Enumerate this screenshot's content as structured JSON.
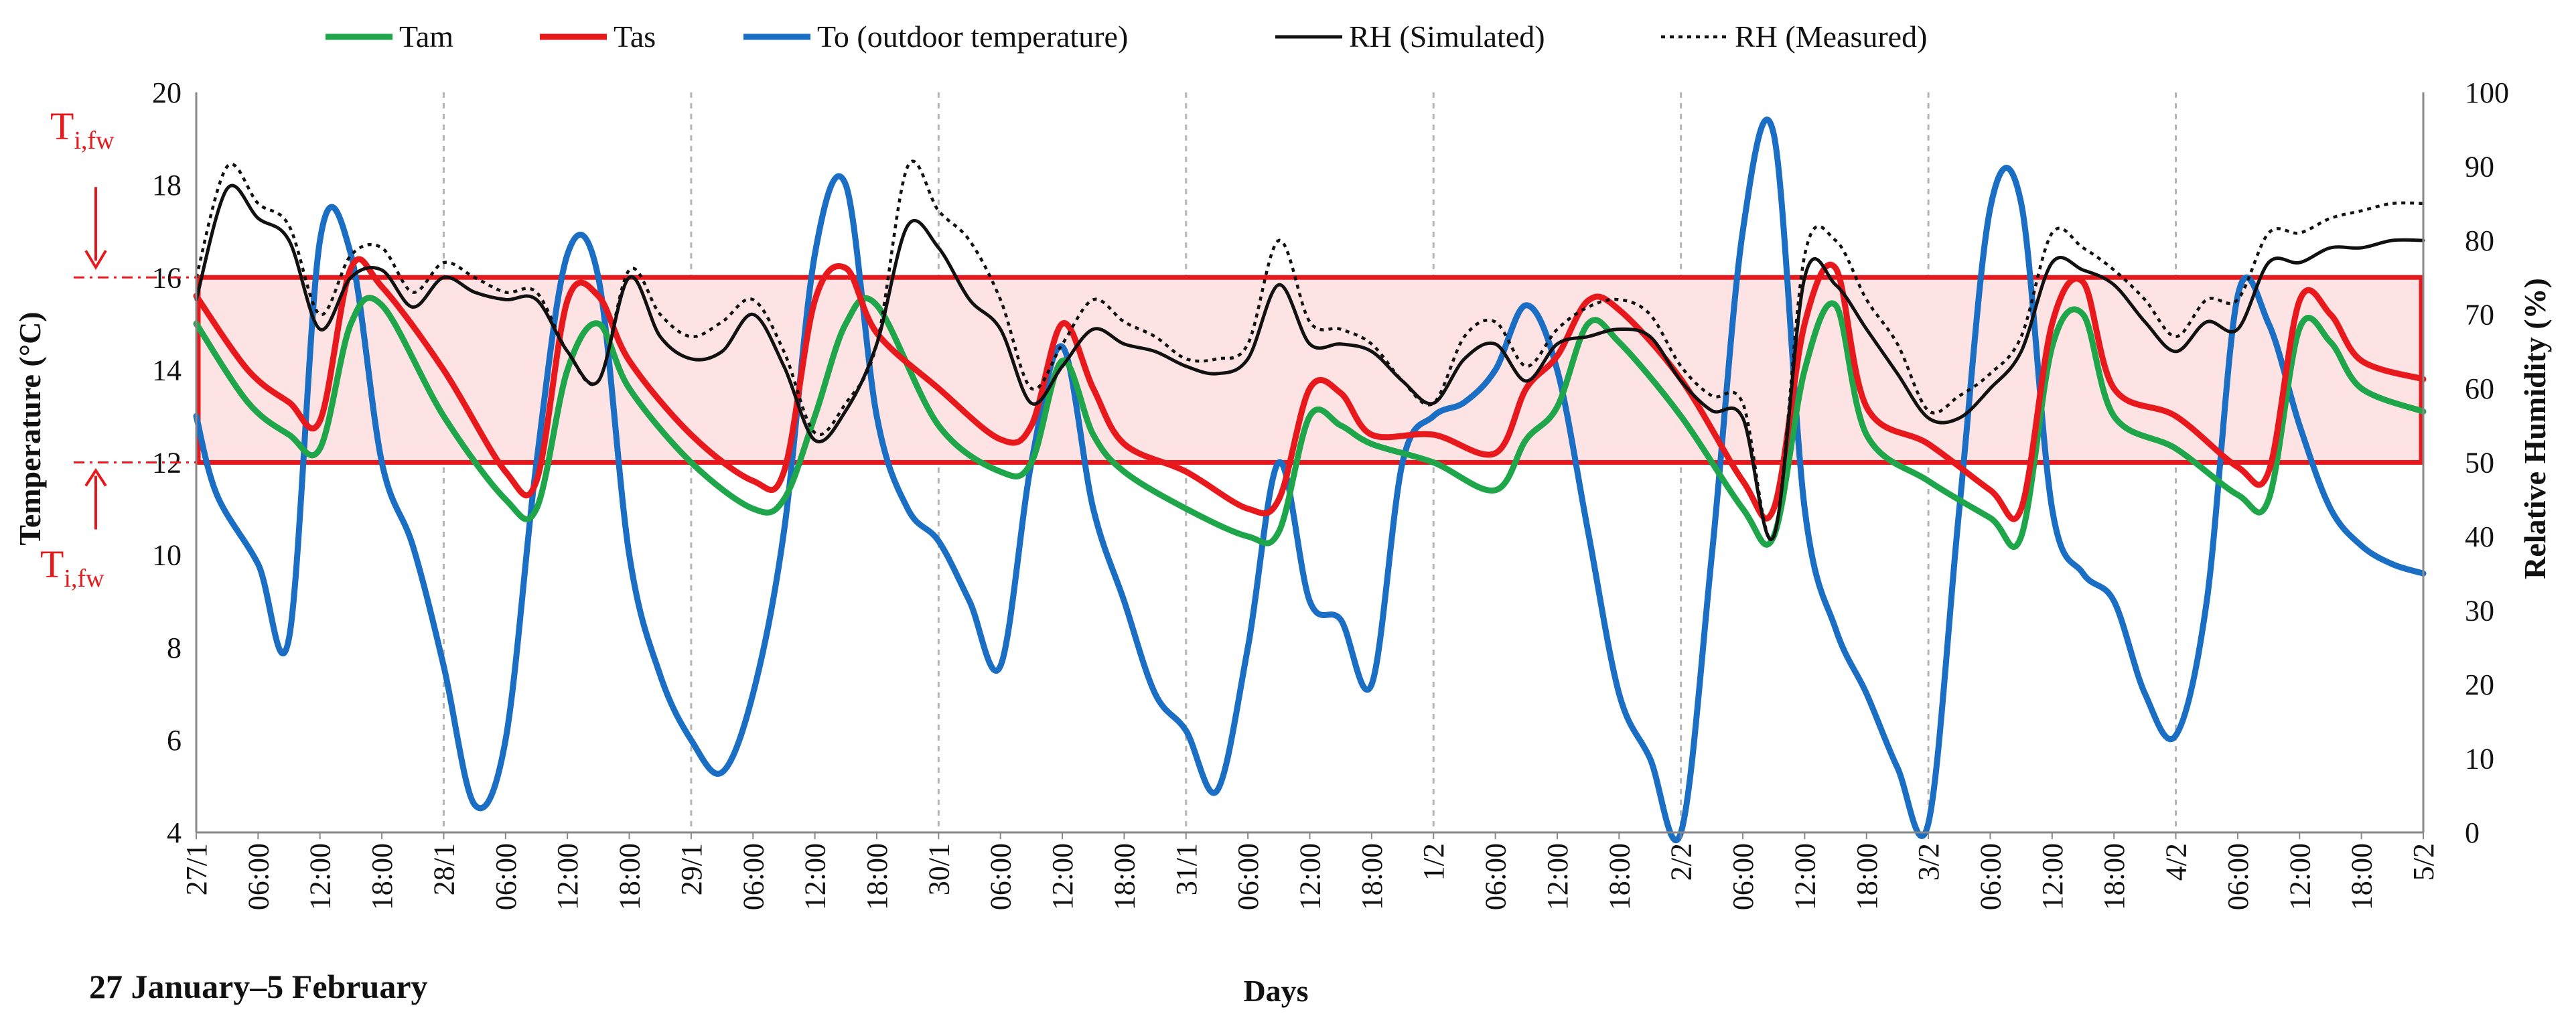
{
  "chart_data": {
    "type": "line",
    "title": "",
    "xlabel": "Days",
    "ylabel": "Temperature (°C)",
    "y2label": "Relative Humidity (%)",
    "footnote": "27 January–5 February",
    "ylim": [
      4,
      20
    ],
    "y2lim": [
      0,
      100
    ],
    "yticks": [
      4,
      6,
      8,
      10,
      12,
      14,
      16,
      18,
      20
    ],
    "y2ticks": [
      0,
      10,
      20,
      30,
      40,
      50,
      60,
      70,
      80,
      90,
      100
    ],
    "xlim": [
      0,
      216
    ],
    "x_unit": "hours since 27/1 00:00",
    "x_tick_labels": [
      "27/1",
      "06:00",
      "12:00",
      "18:00",
      "28/1",
      "06:00",
      "12:00",
      "18:00",
      "29/1",
      "06:00",
      "12:00",
      "18:00",
      "30/1",
      "06:00",
      "12:00",
      "18:00",
      "31/1",
      "06:00",
      "12:00",
      "18:00",
      "1/2",
      "06:00",
      "12:00",
      "18:00",
      "2/2",
      "06:00",
      "12:00",
      "18:00",
      "3/2",
      "06:00",
      "12:00",
      "18:00",
      "4/2",
      "06:00",
      "12:00",
      "18:00",
      "5/2"
    ],
    "grid": "vertical dotted lines at day boundaries",
    "legend": "top",
    "comfort_band": {
      "lower": 12,
      "upper": 16,
      "label_upper": "T",
      "label_upper_sub": "i,fw",
      "label_lower": "T",
      "label_lower_sub": "i,fw"
    },
    "series": [
      {
        "name": "Tam",
        "axis": "left",
        "color": "#1fa64a",
        "style": "solid",
        "x": [
          0,
          5,
          9,
          12,
          15,
          18,
          24,
          30,
          33,
          36,
          39,
          42,
          48,
          54,
          57,
          60,
          63,
          66,
          72,
          78,
          81,
          84,
          87,
          90,
          96,
          102,
          105,
          108,
          111,
          114,
          120,
          126,
          129,
          132,
          135,
          138,
          144,
          150,
          153,
          156,
          159,
          162,
          168,
          174,
          177,
          180,
          183,
          186,
          192,
          198,
          201,
          204,
          207,
          210,
          216
        ],
        "y": [
          15.0,
          13.3,
          12.6,
          12.3,
          15.0,
          15.4,
          13.0,
          11.2,
          11.0,
          14.0,
          15.0,
          13.6,
          12.0,
          11.0,
          11.2,
          13.0,
          15.0,
          15.4,
          12.8,
          11.8,
          12.0,
          14.2,
          12.6,
          11.8,
          11.0,
          10.4,
          10.5,
          13.0,
          12.8,
          12.4,
          12.0,
          11.4,
          12.5,
          13.2,
          15.0,
          14.6,
          13.0,
          11.0,
          10.4,
          14.0,
          15.4,
          12.6,
          11.6,
          10.8,
          10.4,
          14.5,
          15.2,
          13.0,
          12.3,
          11.3,
          11.2,
          14.9,
          14.6,
          13.6,
          13.1
        ]
      },
      {
        "name": "Tas",
        "axis": "left",
        "color": "#e8191c",
        "style": "solid",
        "x": [
          0,
          5,
          9,
          12,
          15,
          18,
          24,
          30,
          33,
          36,
          39,
          42,
          48,
          54,
          57,
          60,
          63,
          66,
          72,
          78,
          81,
          84,
          87,
          90,
          96,
          102,
          105,
          108,
          111,
          114,
          120,
          126,
          129,
          132,
          135,
          138,
          144,
          150,
          153,
          156,
          159,
          162,
          168,
          174,
          177,
          180,
          183,
          186,
          192,
          198,
          201,
          204,
          207,
          210,
          216
        ],
        "y": [
          15.6,
          14.0,
          13.3,
          12.9,
          16.2,
          15.8,
          14.0,
          11.8,
          11.6,
          15.5,
          15.6,
          14.2,
          12.6,
          11.6,
          11.8,
          15.5,
          16.2,
          14.8,
          13.6,
          12.5,
          12.8,
          15.0,
          13.6,
          12.4,
          11.8,
          11.0,
          11.2,
          13.6,
          13.5,
          12.6,
          12.6,
          12.2,
          13.6,
          14.3,
          15.5,
          15.3,
          13.8,
          11.6,
          11.0,
          15.0,
          16.2,
          13.2,
          12.4,
          11.4,
          11.0,
          15.0,
          15.9,
          13.6,
          13.0,
          11.9,
          11.8,
          15.5,
          15.2,
          14.2,
          13.8
        ]
      },
      {
        "name": "To (outdoor temperature)",
        "axis": "left",
        "color": "#1a6fc4",
        "style": "solid",
        "x": [
          0,
          2,
          6,
          9,
          12,
          15,
          18,
          21,
          24,
          27,
          30,
          33,
          36,
          39,
          42,
          45,
          48,
          51,
          54,
          57,
          60,
          63,
          66,
          69,
          72,
          75,
          78,
          81,
          84,
          87,
          90,
          93,
          96,
          99,
          102,
          105,
          108,
          111,
          114,
          117,
          120,
          123,
          126,
          129,
          132,
          135,
          138,
          141,
          144,
          147,
          150,
          153,
          156,
          159,
          162,
          165,
          168,
          171,
          174,
          177,
          180,
          183,
          186,
          189,
          192,
          195,
          198,
          201,
          204,
          207,
          210,
          213,
          216
        ],
        "y": [
          13.0,
          11.3,
          9.8,
          8.2,
          16.8,
          16.5,
          12.0,
          10.2,
          7.6,
          4.6,
          6.0,
          12.0,
          16.5,
          16.0,
          10.0,
          7.4,
          6.0,
          5.3,
          7.0,
          10.5,
          16.5,
          18.0,
          13.0,
          11.0,
          10.3,
          9.0,
          7.6,
          12.0,
          14.5,
          11.0,
          9.0,
          7.0,
          6.2,
          4.9,
          8.0,
          12.0,
          9.0,
          8.6,
          7.2,
          12.0,
          13.0,
          13.3,
          14.0,
          15.4,
          14.0,
          10.5,
          7.0,
          5.6,
          4.0,
          10.0,
          17.0,
          19.1,
          11.0,
          8.4,
          7.0,
          5.4,
          4.2,
          11.0,
          17.5,
          17.6,
          11.0,
          9.6,
          9.0,
          7.0,
          6.1,
          9.0,
          15.6,
          15.0,
          12.8,
          11.0,
          10.2,
          9.8,
          9.6
        ]
      },
      {
        "name": "RH (Simulated)",
        "axis": "right",
        "color": "#111111",
        "style": "solid",
        "x": [
          0,
          3,
          6,
          9,
          12,
          15,
          18,
          21,
          24,
          27,
          30,
          33,
          36,
          39,
          42,
          45,
          48,
          51,
          54,
          57,
          60,
          63,
          66,
          69,
          72,
          75,
          78,
          81,
          84,
          87,
          90,
          93,
          96,
          99,
          102,
          105,
          108,
          111,
          114,
          117,
          120,
          123,
          126,
          129,
          132,
          135,
          138,
          141,
          144,
          147,
          150,
          153,
          156,
          159,
          162,
          165,
          168,
          171,
          174,
          177,
          180,
          183,
          186,
          189,
          192,
          195,
          198,
          201,
          204,
          207,
          210,
          213,
          216
        ],
        "y": [
          72,
          87,
          83,
          80,
          68,
          75,
          76,
          71,
          75,
          73,
          72,
          72,
          65,
          61,
          75,
          67,
          64,
          65,
          70,
          63,
          53,
          57,
          66,
          82,
          79,
          72,
          68,
          58,
          63,
          68,
          66,
          65,
          63,
          62,
          64,
          74,
          66,
          66,
          65,
          61,
          58,
          64,
          66,
          61,
          66,
          67,
          68,
          67,
          61,
          57,
          56,
          40,
          75,
          74,
          68,
          62,
          56,
          56,
          60,
          65,
          77,
          76,
          74,
          69,
          65,
          69,
          68,
          77,
          77,
          79,
          79,
          80,
          80
        ]
      },
      {
        "name": "RH (Measured)",
        "axis": "right",
        "color": "#111111",
        "style": "dotted",
        "x": [
          0,
          3,
          6,
          9,
          12,
          15,
          18,
          21,
          24,
          27,
          30,
          33,
          36,
          39,
          42,
          45,
          48,
          51,
          54,
          57,
          60,
          63,
          66,
          69,
          72,
          75,
          78,
          81,
          84,
          87,
          90,
          93,
          96,
          99,
          102,
          105,
          108,
          111,
          114,
          117,
          120,
          123,
          126,
          129,
          132,
          135,
          138,
          141,
          144,
          147,
          150,
          153,
          156,
          159,
          162,
          165,
          168,
          171,
          174,
          177,
          180,
          183,
          186,
          189,
          192,
          195,
          198,
          201,
          204,
          207,
          210,
          213,
          216
        ],
        "y": [
          75,
          90,
          85,
          82,
          70,
          78,
          79,
          73,
          77,
          75,
          73,
          73,
          65,
          61,
          76,
          70,
          67,
          69,
          72,
          65,
          54,
          58,
          66,
          90,
          84,
          80,
          72,
          60,
          66,
          72,
          69,
          67,
          64,
          64,
          66,
          80,
          69,
          68,
          66,
          61,
          58,
          67,
          69,
          63,
          68,
          71,
          72,
          70,
          63,
          59,
          58,
          40,
          78,
          80,
          72,
          66,
          57,
          59,
          62,
          67,
          81,
          79,
          76,
          72,
          67,
          72,
          72,
          81,
          81,
          83,
          84,
          85,
          85
        ]
      }
    ]
  }
}
